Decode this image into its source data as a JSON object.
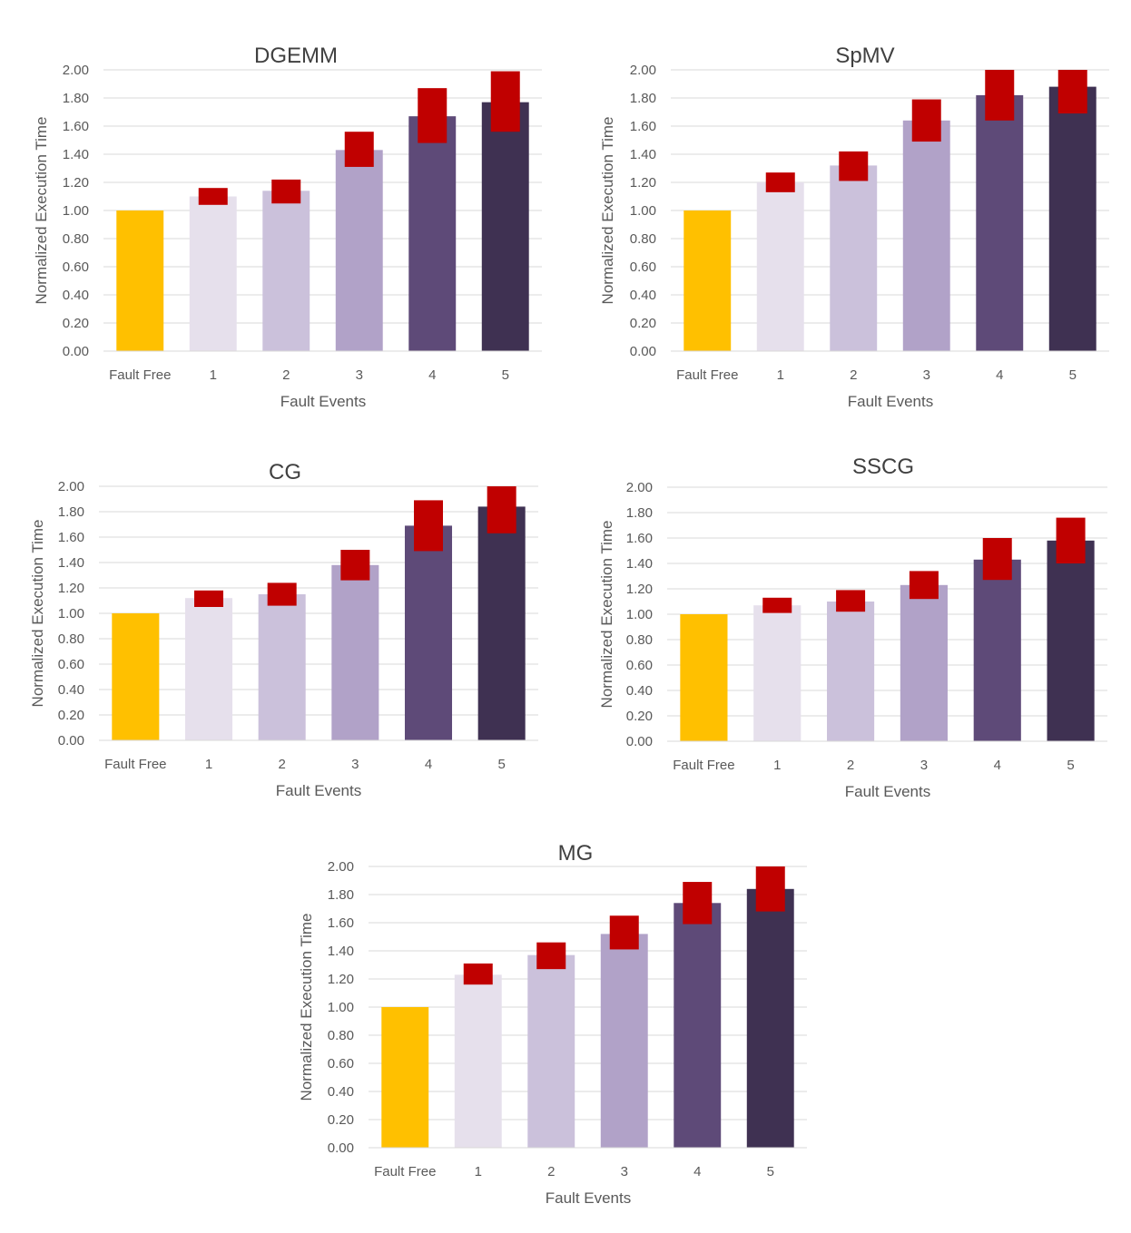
{
  "colors": {
    "bars": [
      "#FFC000",
      "#E6E0EC",
      "#CBC1DB",
      "#B1A2C8",
      "#5E4A78",
      "#3F3152"
    ],
    "error": "#C00000"
  },
  "chart_data": [
    {
      "type": "bar",
      "title": "DGEMM",
      "xlabel": "Fault Events",
      "ylabel": "Normalized Execution Time",
      "categories": [
        "Fault Free",
        "1",
        "2",
        "3",
        "4",
        "5"
      ],
      "values": [
        1.0,
        1.1,
        1.14,
        1.43,
        1.67,
        1.77
      ],
      "error_ranges": [
        null,
        [
          1.04,
          1.16
        ],
        [
          1.05,
          1.22
        ],
        [
          1.31,
          1.56
        ],
        [
          1.48,
          1.87
        ],
        [
          1.56,
          1.99
        ]
      ],
      "ylim": [
        0,
        2
      ],
      "yticks": [
        "0.00",
        "0.20",
        "0.40",
        "0.60",
        "0.80",
        "1.00",
        "1.20",
        "1.40",
        "1.60",
        "1.80",
        "2.00"
      ],
      "grid": true
    },
    {
      "type": "bar",
      "title": "SpMV",
      "xlabel": "Fault Events",
      "ylabel": "Normalized Execution Time",
      "categories": [
        "Fault Free",
        "1",
        "2",
        "3",
        "4",
        "5"
      ],
      "values": [
        1.0,
        1.2,
        1.32,
        1.64,
        1.82,
        1.88
      ],
      "error_ranges": [
        null,
        [
          1.13,
          1.27
        ],
        [
          1.21,
          1.42
        ],
        [
          1.49,
          1.79
        ],
        [
          1.64,
          2.0
        ],
        [
          1.69,
          2.0
        ]
      ],
      "ylim": [
        0,
        2
      ],
      "yticks": [
        "0.00",
        "0.20",
        "0.40",
        "0.60",
        "0.80",
        "1.00",
        "1.20",
        "1.40",
        "1.60",
        "1.80",
        "2.00"
      ],
      "grid": true
    },
    {
      "type": "bar",
      "title": "CG",
      "xlabel": "Fault Events",
      "ylabel": "Normalized Execution Time",
      "categories": [
        "Fault Free",
        "1",
        "2",
        "3",
        "4",
        "5"
      ],
      "values": [
        1.0,
        1.12,
        1.15,
        1.38,
        1.69,
        1.84
      ],
      "error_ranges": [
        null,
        [
          1.05,
          1.18
        ],
        [
          1.06,
          1.24
        ],
        [
          1.26,
          1.5
        ],
        [
          1.49,
          1.89
        ],
        [
          1.63,
          2.0
        ]
      ],
      "ylim": [
        0,
        2
      ],
      "yticks": [
        "0.00",
        "0.20",
        "0.40",
        "0.60",
        "0.80",
        "1.00",
        "1.20",
        "1.40",
        "1.60",
        "1.80",
        "2.00"
      ],
      "grid": true
    },
    {
      "type": "bar",
      "title": "SSCG",
      "xlabel": "Fault Events",
      "ylabel": "Normalized Execution Time",
      "categories": [
        "Fault Free",
        "1",
        "2",
        "3",
        "4",
        "5"
      ],
      "values": [
        1.0,
        1.07,
        1.1,
        1.23,
        1.43,
        1.58
      ],
      "error_ranges": [
        null,
        [
          1.01,
          1.13
        ],
        [
          1.02,
          1.19
        ],
        [
          1.12,
          1.34
        ],
        [
          1.27,
          1.6
        ],
        [
          1.4,
          1.76
        ]
      ],
      "ylim": [
        0,
        2
      ],
      "yticks": [
        "0.00",
        "0.20",
        "0.40",
        "0.60",
        "0.80",
        "1.00",
        "1.20",
        "1.40",
        "1.60",
        "1.80",
        "2.00"
      ],
      "grid": true
    },
    {
      "type": "bar",
      "title": "MG",
      "xlabel": "Fault Events",
      "ylabel": "Normalized Execution Time",
      "categories": [
        "Fault Free",
        "1",
        "2",
        "3",
        "4",
        "5"
      ],
      "values": [
        1.0,
        1.23,
        1.37,
        1.52,
        1.74,
        1.84
      ],
      "error_ranges": [
        null,
        [
          1.16,
          1.31
        ],
        [
          1.27,
          1.46
        ],
        [
          1.41,
          1.65
        ],
        [
          1.59,
          1.89
        ],
        [
          1.68,
          2.0
        ]
      ],
      "ylim": [
        0,
        2
      ],
      "yticks": [
        "0.00",
        "0.20",
        "0.40",
        "0.60",
        "0.80",
        "1.00",
        "1.20",
        "1.40",
        "1.60",
        "1.80",
        "2.00"
      ],
      "grid": true
    }
  ]
}
